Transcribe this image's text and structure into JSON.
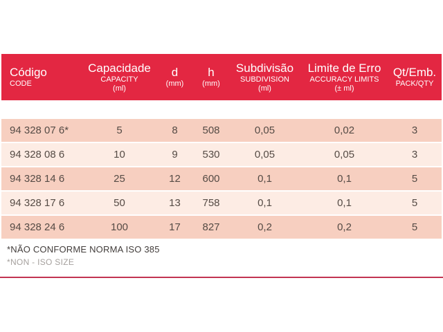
{
  "table": {
    "columns": [
      {
        "title": "Código",
        "subtitle": "CODE",
        "unit": ""
      },
      {
        "title": "Capacidade",
        "subtitle": "CAPACITY",
        "unit": "(ml)"
      },
      {
        "title": "d",
        "subtitle": "",
        "unit": "(mm)"
      },
      {
        "title": "h",
        "subtitle": "",
        "unit": "(mm)"
      },
      {
        "title": "Subdivisão",
        "subtitle": "SUBDIVISION",
        "unit": "(ml)"
      },
      {
        "title": "Limite de Erro",
        "subtitle": "ACCURACY LIMITS",
        "unit": "(± ml)"
      },
      {
        "title": "Qt/Emb.",
        "subtitle": "PACK/QTY",
        "unit": ""
      }
    ],
    "rows": [
      {
        "code": "94 328 07 6*",
        "capacity": "5",
        "d": "8",
        "h": "508",
        "subdivision": "0,05",
        "accuracy": "0,02",
        "pack": "3"
      },
      {
        "code": "94 328 08 6",
        "capacity": "10",
        "d": "9",
        "h": "530",
        "subdivision": "0,05",
        "accuracy": "0,05",
        "pack": "3"
      },
      {
        "code": "94 328 14 6",
        "capacity": "25",
        "d": "12",
        "h": "600",
        "subdivision": "0,1",
        "accuracy": "0,1",
        "pack": "5"
      },
      {
        "code": "94 328 17 6",
        "capacity": "50",
        "d": "13",
        "h": "758",
        "subdivision": "0,1",
        "accuracy": "0,1",
        "pack": "5"
      },
      {
        "code": "94 328 24 6",
        "capacity": "100",
        "d": "17",
        "h": "827",
        "subdivision": "0,2",
        "accuracy": "0,2",
        "pack": "5"
      }
    ]
  },
  "footnotes": {
    "line1": "*NÃO CONFORME NORMA ISO 385",
    "line2": "*NON - ISO SIZE"
  },
  "colors": {
    "header_bg": "#e32742",
    "row_dark": "#f7cfc0",
    "row_light": "#fdece4",
    "row_text": "#554b45",
    "footer_text_dark": "#423d3b",
    "footer_text_light": "#a5a09d",
    "divider": "#c23351"
  }
}
